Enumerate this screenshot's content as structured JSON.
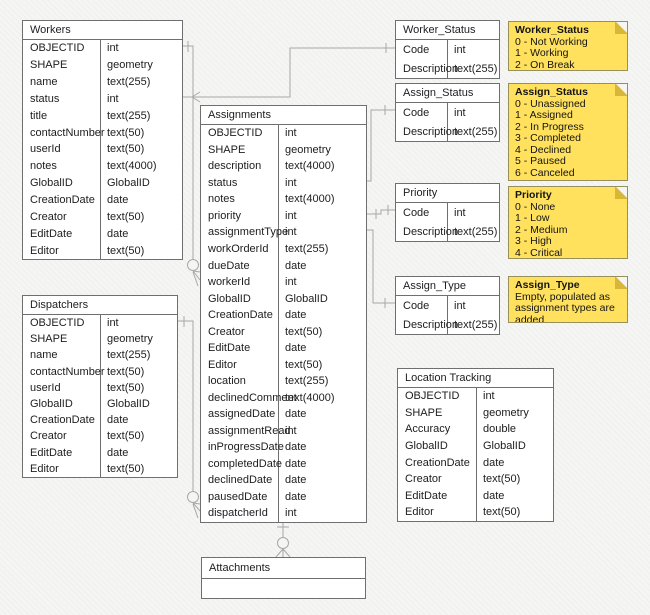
{
  "colors": {
    "background": "#f5f5f3",
    "table_fill": "#ffffff",
    "table_border": "#6f6f6f",
    "connector": "#a8a8a8",
    "note_fill": "#ffe15e",
    "note_fold": "#d8b63a",
    "note_border": "#98905a"
  },
  "tables": {
    "workers": {
      "title": "Workers",
      "fields": [
        {
          "name": "OBJECTID",
          "type": "int"
        },
        {
          "name": "SHAPE",
          "type": "geometry"
        },
        {
          "name": "name",
          "type": "text(255)"
        },
        {
          "name": "status",
          "type": "int"
        },
        {
          "name": "title",
          "type": "text(255)"
        },
        {
          "name": "contactNumber",
          "type": "text(50)"
        },
        {
          "name": "userId",
          "type": "text(50)"
        },
        {
          "name": "notes",
          "type": "text(4000)"
        },
        {
          "name": "GlobalID",
          "type": "GlobalID"
        },
        {
          "name": "CreationDate",
          "type": "date"
        },
        {
          "name": "Creator",
          "type": "text(50)"
        },
        {
          "name": "EditDate",
          "type": "date"
        },
        {
          "name": "Editor",
          "type": "text(50)"
        }
      ]
    },
    "dispatchers": {
      "title": "Dispatchers",
      "fields": [
        {
          "name": "OBJECTID",
          "type": "int"
        },
        {
          "name": "SHAPE",
          "type": "geometry"
        },
        {
          "name": "name",
          "type": "text(255)"
        },
        {
          "name": "contactNumber",
          "type": "text(50)"
        },
        {
          "name": "userId",
          "type": "text(50)"
        },
        {
          "name": "GlobalID",
          "type": "GlobalID"
        },
        {
          "name": "CreationDate",
          "type": "date"
        },
        {
          "name": "Creator",
          "type": "text(50)"
        },
        {
          "name": "EditDate",
          "type": "date"
        },
        {
          "name": "Editor",
          "type": "text(50)"
        }
      ]
    },
    "assignments": {
      "title": "Assignments",
      "fields": [
        {
          "name": "OBJECTID",
          "type": "int"
        },
        {
          "name": "SHAPE",
          "type": "geometry"
        },
        {
          "name": "description",
          "type": "text(4000)"
        },
        {
          "name": "status",
          "type": "int"
        },
        {
          "name": "notes",
          "type": "text(4000)"
        },
        {
          "name": "priority",
          "type": "int"
        },
        {
          "name": "assignmentType",
          "type": "int"
        },
        {
          "name": "workOrderId",
          "type": "text(255)"
        },
        {
          "name": "dueDate",
          "type": "date"
        },
        {
          "name": "workerId",
          "type": "int"
        },
        {
          "name": "GlobalID",
          "type": "GlobalID"
        },
        {
          "name": "CreationDate",
          "type": "date"
        },
        {
          "name": "Creator",
          "type": "text(50)"
        },
        {
          "name": "EditDate",
          "type": "date"
        },
        {
          "name": "Editor",
          "type": "text(50)"
        },
        {
          "name": "location",
          "type": "text(255)"
        },
        {
          "name": "declinedComment",
          "type": "text(4000)"
        },
        {
          "name": "assignedDate",
          "type": "date"
        },
        {
          "name": "assignmentRead",
          "type": "int"
        },
        {
          "name": "inProgressDate",
          "type": "date"
        },
        {
          "name": "completedDate",
          "type": "date"
        },
        {
          "name": "declinedDate",
          "type": "date"
        },
        {
          "name": "pausedDate",
          "type": "date"
        },
        {
          "name": "dispatcherId",
          "type": "int"
        }
      ]
    },
    "worker_status": {
      "title": "Worker_Status",
      "fields": [
        {
          "name": "Code",
          "type": "int"
        },
        {
          "name": "Description",
          "type": "text(255)"
        }
      ]
    },
    "assign_status": {
      "title": "Assign_Status",
      "fields": [
        {
          "name": "Code",
          "type": "int"
        },
        {
          "name": "Description",
          "type": "text(255)"
        }
      ]
    },
    "priority": {
      "title": "Priority",
      "fields": [
        {
          "name": "Code",
          "type": "int"
        },
        {
          "name": "Description",
          "type": "text(255)"
        }
      ]
    },
    "assign_type": {
      "title": "Assign_Type",
      "fields": [
        {
          "name": "Code",
          "type": "int"
        },
        {
          "name": "Description",
          "type": "text(255)"
        }
      ]
    },
    "location_tracking": {
      "title": "Location Tracking",
      "fields": [
        {
          "name": "OBJECTID",
          "type": "int"
        },
        {
          "name": "SHAPE",
          "type": "geometry"
        },
        {
          "name": "Accuracy",
          "type": "double"
        },
        {
          "name": "GlobalID",
          "type": "GlobalID"
        },
        {
          "name": "CreationDate",
          "type": "date"
        },
        {
          "name": "Creator",
          "type": "text(50)"
        },
        {
          "name": "EditDate",
          "type": "date"
        },
        {
          "name": "Editor",
          "type": "text(50)"
        }
      ]
    },
    "attachments": {
      "title": "Attachments",
      "fields": [],
      "empty_row": true
    }
  },
  "notes": {
    "worker_status": {
      "title": "Worker_Status",
      "lines": [
        "0 - Not Working",
        "1 - Working",
        "2 - On Break"
      ]
    },
    "assign_status": {
      "title": "Assign_Status",
      "lines": [
        "0 - Unassigned",
        "1 - Assigned",
        "2 - In Progress",
        "3 - Completed",
        "4 - Declined",
        "5 - Paused",
        "6 - Canceled"
      ]
    },
    "priority": {
      "title": "Priority",
      "lines": [
        "0 - None",
        "1 - Low",
        "2 - Medium",
        "3 - High",
        "4 - Critical"
      ]
    },
    "assign_type": {
      "title": "Assign_Type",
      "lines": [
        "Empty, populated as",
        "assignment types are added"
      ]
    }
  },
  "connectors": [
    {
      "name": "workers-to-assignments",
      "from": "Workers.OBJECTID",
      "to": "Assignments.workerId",
      "from_marker": "one-tick",
      "to_marker": "zero-or-many"
    },
    {
      "name": "dispatchers-to-assignments",
      "from": "Dispatchers.OBJECTID",
      "to": "Assignments.dispatcherId",
      "from_marker": "one-tick",
      "to_marker": "zero-or-many"
    },
    {
      "name": "workers-status-to-worker-status",
      "from": "Workers.status",
      "to": "Worker_Status.Code",
      "from_marker": "many",
      "to_marker": "one-tick"
    },
    {
      "name": "assignments-status-to-assign-status",
      "from": "Assignments.status",
      "to": "Assign_Status.Code",
      "to_marker": "one-tick"
    },
    {
      "name": "assignments-priority-to-priority",
      "from": "Assignments.priority",
      "to": "Priority.Code",
      "to_marker": "one-tick"
    },
    {
      "name": "assignments-type-to-assign-type",
      "from": "Assignments.assignmentType",
      "to": "Assign_Type.Code",
      "to_marker": "one-tick"
    },
    {
      "name": "assignments-to-attachments",
      "from": "Assignments",
      "to": "Attachments",
      "from_marker": "one-tick",
      "to_marker": "zero-or-many"
    }
  ]
}
